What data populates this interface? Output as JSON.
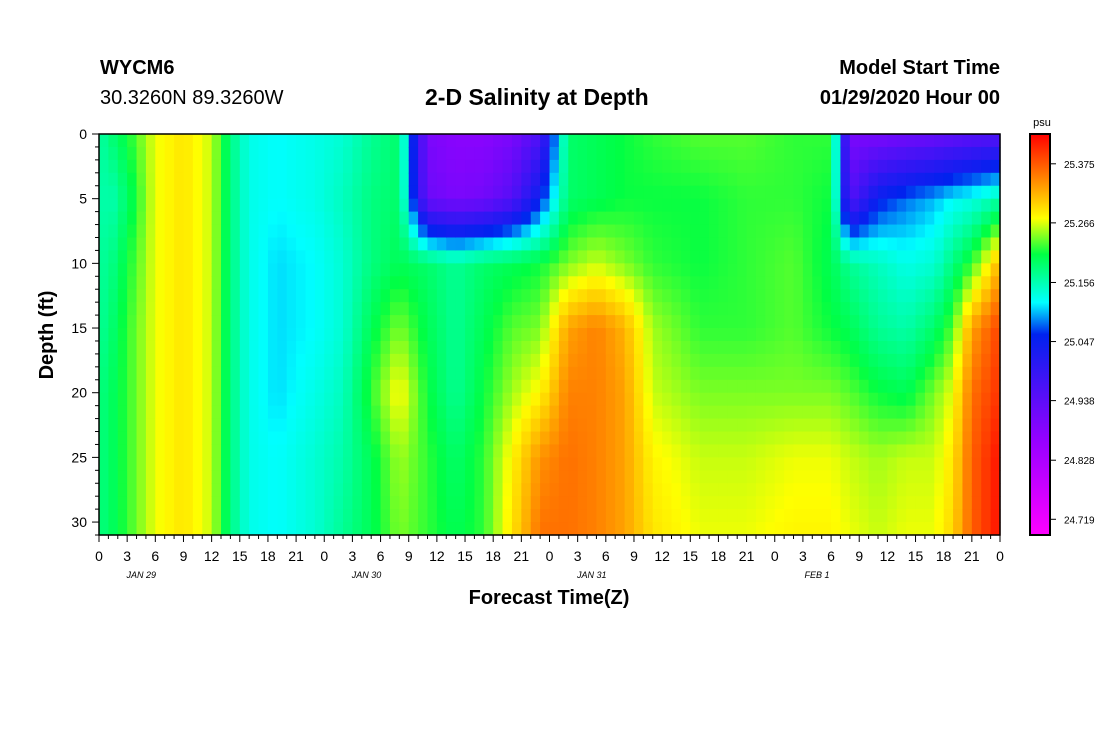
{
  "header": {
    "station": "WYCM6",
    "coords": "30.3260N 89.3260W",
    "title": "2-D Salinity at Depth",
    "model_start_label": "Model Start Time",
    "model_start_value": "01/29/2020 Hour 00"
  },
  "chart_data": {
    "type": "heatmap",
    "title": "2-D Salinity at Depth",
    "xlabel": "Forecast Time(Z)",
    "ylabel": "Depth (ft)",
    "x_tick_labels": [
      "0",
      "3",
      "6",
      "9",
      "12",
      "15",
      "18",
      "21",
      "0",
      "3",
      "6",
      "9",
      "12",
      "15",
      "18",
      "21",
      "0",
      "3",
      "6",
      "9",
      "12",
      "15",
      "18",
      "21",
      "0",
      "3",
      "6",
      "9",
      "12",
      "15",
      "18",
      "21",
      "0"
    ],
    "date_labels": [
      "JAN 29",
      "JAN 30",
      "JAN 31",
      "FEB 1"
    ],
    "xlim_hours": [
      0,
      96
    ],
    "y_ticks": [
      0,
      5,
      10,
      15,
      20,
      25,
      30
    ],
    "ylim_ft": [
      0,
      31
    ],
    "colorbar": {
      "unit": "psu",
      "ticks": [
        "25.375",
        "25.266",
        "25.156",
        "25.047",
        "24.938",
        "24.828",
        "24.719"
      ],
      "min": 24.69,
      "max": 25.43
    },
    "colors": {
      "magenta": "#ff00ff",
      "purple": "#9900ff",
      "blue": "#0022ee",
      "cyan": "#00ffff",
      "green": "#00ff44",
      "yellow": "#ffff00",
      "orange": "#ff7700",
      "red": "#ff0000"
    },
    "depth_profile_keys_ft": [
      0,
      5,
      10,
      15,
      20,
      25,
      31
    ],
    "time_profiles": [
      {
        "hour": 0,
        "values": [
          25.16,
          25.17,
          25.17,
          25.17,
          25.18,
          25.18,
          25.18
        ]
      },
      {
        "hour": 1,
        "values": [
          25.18,
          25.15,
          25.17,
          25.18,
          25.19,
          25.19,
          25.19
        ]
      },
      {
        "hour": 3,
        "values": [
          25.21,
          25.19,
          25.21,
          25.22,
          25.22,
          25.22,
          25.22
        ]
      },
      {
        "hour": 6,
        "values": [
          25.27,
          25.27,
          25.27,
          25.27,
          25.27,
          25.27,
          25.27
        ]
      },
      {
        "hour": 9,
        "values": [
          25.29,
          25.29,
          25.29,
          25.29,
          25.29,
          25.29,
          25.29
        ]
      },
      {
        "hour": 12,
        "values": [
          25.26,
          25.26,
          25.26,
          25.26,
          25.26,
          25.26,
          25.26
        ]
      },
      {
        "hour": 14,
        "values": [
          25.18,
          25.18,
          25.18,
          25.18,
          25.18,
          25.18,
          25.18
        ]
      },
      {
        "hour": 16,
        "values": [
          25.13,
          25.13,
          25.13,
          25.13,
          25.13,
          25.13,
          25.13
        ]
      },
      {
        "hour": 19,
        "values": [
          25.12,
          25.12,
          25.11,
          25.11,
          25.11,
          25.12,
          25.12
        ]
      },
      {
        "hour": 23,
        "values": [
          25.13,
          25.13,
          25.12,
          25.12,
          25.13,
          25.14,
          25.14
        ]
      },
      {
        "hour": 26,
        "values": [
          25.14,
          25.15,
          25.14,
          25.14,
          25.15,
          25.16,
          25.17
        ]
      },
      {
        "hour": 29,
        "values": [
          25.17,
          25.18,
          25.18,
          25.2,
          25.22,
          25.2,
          25.2
        ]
      },
      {
        "hour": 32,
        "values": [
          25.19,
          25.19,
          25.2,
          25.24,
          25.28,
          25.25,
          25.24
        ]
      },
      {
        "hour": 35,
        "values": [
          24.9,
          24.92,
          25.19,
          25.2,
          25.21,
          25.22,
          25.22
        ]
      },
      {
        "hour": 38,
        "values": [
          24.88,
          24.9,
          25.17,
          25.17,
          25.17,
          25.19,
          25.2
        ]
      },
      {
        "hour": 41,
        "values": [
          24.88,
          24.91,
          25.19,
          25.2,
          25.21,
          25.22,
          25.22
        ]
      },
      {
        "hour": 44,
        "values": [
          24.9,
          24.95,
          25.2,
          25.23,
          25.25,
          25.28,
          25.29
        ]
      },
      {
        "hour": 47,
        "values": [
          24.96,
          25.05,
          25.21,
          25.24,
          25.28,
          25.34,
          25.36
        ]
      },
      {
        "hour": 50,
        "values": [
          25.19,
          25.19,
          25.24,
          25.33,
          25.35,
          25.36,
          25.36
        ]
      },
      {
        "hour": 53,
        "values": [
          25.2,
          25.2,
          25.26,
          25.35,
          25.35,
          25.35,
          25.35
        ]
      },
      {
        "hour": 56,
        "values": [
          25.21,
          25.21,
          25.24,
          25.32,
          25.33,
          25.33,
          25.33
        ]
      },
      {
        "hour": 59,
        "values": [
          25.22,
          25.21,
          25.22,
          25.25,
          25.26,
          25.28,
          25.29
        ]
      },
      {
        "hour": 64,
        "values": [
          25.23,
          25.21,
          25.21,
          25.22,
          25.24,
          25.26,
          25.27
        ]
      },
      {
        "hour": 69,
        "values": [
          25.23,
          25.22,
          25.22,
          25.22,
          25.24,
          25.26,
          25.27
        ]
      },
      {
        "hour": 74,
        "values": [
          25.22,
          25.22,
          25.23,
          25.23,
          25.24,
          25.27,
          25.28
        ]
      },
      {
        "hour": 78,
        "values": [
          25.22,
          25.21,
          25.2,
          25.21,
          25.24,
          25.27,
          25.28
        ]
      },
      {
        "hour": 80,
        "values": [
          24.9,
          24.95,
          25.17,
          25.2,
          25.23,
          25.26,
          25.27
        ]
      },
      {
        "hour": 83,
        "values": [
          24.9,
          25.05,
          25.15,
          25.17,
          25.21,
          25.25,
          25.26
        ]
      },
      {
        "hour": 86,
        "values": [
          24.91,
          25.08,
          25.13,
          25.16,
          25.2,
          25.26,
          25.27
        ]
      },
      {
        "hour": 89,
        "values": [
          24.92,
          25.1,
          25.14,
          25.19,
          25.24,
          25.26,
          25.27
        ]
      },
      {
        "hour": 91,
        "values": [
          24.93,
          25.12,
          25.18,
          25.23,
          25.27,
          25.29,
          25.3
        ]
      },
      {
        "hour": 93,
        "values": [
          24.94,
          25.13,
          25.22,
          25.33,
          25.36,
          25.37,
          25.37
        ]
      },
      {
        "hour": 96,
        "values": [
          24.95,
          25.16,
          25.32,
          25.39,
          25.4,
          25.42,
          25.42
        ]
      }
    ]
  }
}
